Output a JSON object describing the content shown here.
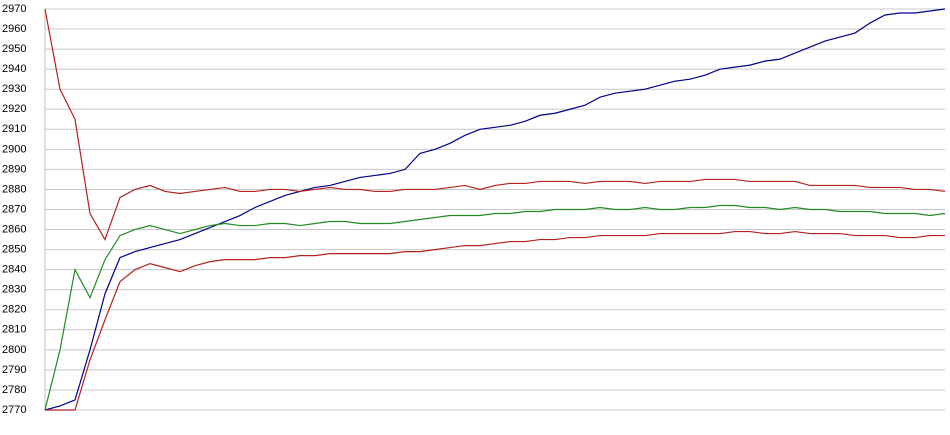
{
  "chart_data": {
    "type": "line",
    "ylim": [
      2770,
      2970
    ],
    "yticks": [
      2770,
      2780,
      2790,
      2800,
      2810,
      2820,
      2830,
      2840,
      2850,
      2860,
      2870,
      2880,
      2890,
      2900,
      2910,
      2920,
      2930,
      2940,
      2950,
      2960,
      2970
    ],
    "grid": true,
    "series": [
      {
        "color": "#00008b",
        "values": [
          2770,
          2772,
          2775,
          2800,
          2828,
          2846,
          2849,
          2851,
          2853,
          2855,
          2858,
          2861,
          2864,
          2867,
          2871,
          2874,
          2877,
          2879,
          2881,
          2882,
          2884,
          2886,
          2887,
          2888,
          2890,
          2898,
          2900,
          2903,
          2907,
          2910,
          2911,
          2912,
          2914,
          2917,
          2918,
          2920,
          2922,
          2926,
          2928,
          2929,
          2930,
          2932,
          2934,
          2935,
          2937,
          2940,
          2941,
          2942,
          2944,
          2945,
          2948,
          2951,
          2954,
          2956,
          2958,
          2963,
          2967,
          2968,
          2968,
          2969,
          2970
        ]
      },
      {
        "color": "#b22222",
        "values": [
          2970,
          2930,
          2915,
          2868,
          2855,
          2876,
          2880,
          2882,
          2879,
          2878,
          2879,
          2880,
          2881,
          2879,
          2879,
          2880,
          2880,
          2879,
          2880,
          2881,
          2880,
          2880,
          2879,
          2879,
          2880,
          2880,
          2880,
          2881,
          2882,
          2880,
          2882,
          2883,
          2883,
          2884,
          2884,
          2884,
          2883,
          2884,
          2884,
          2884,
          2883,
          2884,
          2884,
          2884,
          2885,
          2885,
          2885,
          2884,
          2884,
          2884,
          2884,
          2882,
          2882,
          2882,
          2882,
          2881,
          2881,
          2881,
          2880,
          2880,
          2879
        ]
      },
      {
        "color": "#228b22",
        "values": [
          2770,
          2800,
          2840,
          2826,
          2845,
          2857,
          2860,
          2862,
          2860,
          2858,
          2860,
          2862,
          2863,
          2862,
          2862,
          2863,
          2863,
          2862,
          2863,
          2864,
          2864,
          2863,
          2863,
          2863,
          2864,
          2865,
          2866,
          2867,
          2867,
          2867,
          2868,
          2868,
          2869,
          2869,
          2870,
          2870,
          2870,
          2871,
          2870,
          2870,
          2871,
          2870,
          2870,
          2871,
          2871,
          2872,
          2872,
          2871,
          2871,
          2870,
          2871,
          2870,
          2870,
          2869,
          2869,
          2869,
          2868,
          2868,
          2868,
          2867,
          2868
        ]
      },
      {
        "color": "#b22222",
        "values": [
          2770,
          2770,
          2770,
          2795,
          2815,
          2834,
          2840,
          2843,
          2841,
          2839,
          2842,
          2844,
          2845,
          2845,
          2845,
          2846,
          2846,
          2847,
          2847,
          2848,
          2848,
          2848,
          2848,
          2848,
          2849,
          2849,
          2850,
          2851,
          2852,
          2852,
          2853,
          2854,
          2854,
          2855,
          2855,
          2856,
          2856,
          2857,
          2857,
          2857,
          2857,
          2858,
          2858,
          2858,
          2858,
          2858,
          2859,
          2859,
          2858,
          2858,
          2859,
          2858,
          2858,
          2858,
          2857,
          2857,
          2857,
          2856,
          2856,
          2857,
          2857
        ]
      }
    ]
  }
}
